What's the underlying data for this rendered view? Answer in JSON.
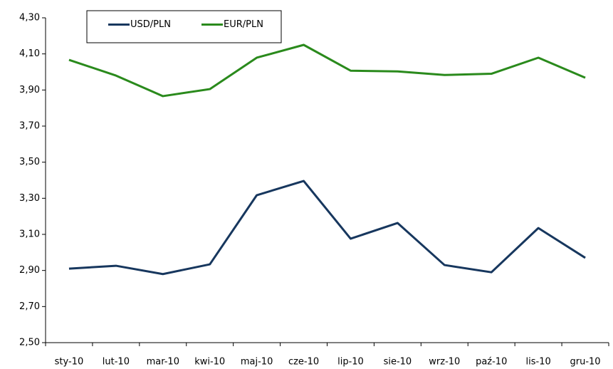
{
  "chart_data": {
    "type": "line",
    "categories": [
      "sty-10",
      "lut-10",
      "mar-10",
      "kwi-10",
      "maj-10",
      "cze-10",
      "lip-10",
      "sie-10",
      "wrz-10",
      "paź-10",
      "lis-10",
      "gru-10"
    ],
    "series": [
      {
        "name": "USD/PLN",
        "color": "#17375e",
        "values": [
          2.91,
          2.926,
          2.88,
          2.934,
          3.317,
          3.396,
          3.076,
          3.163,
          2.93,
          2.89,
          3.135,
          2.97
        ]
      },
      {
        "name": "EUR/PLN",
        "color": "#2a8a1c",
        "values": [
          4.067,
          3.98,
          3.866,
          3.905,
          4.079,
          4.15,
          4.007,
          4.003,
          3.983,
          3.99,
          4.079,
          3.968
        ]
      }
    ],
    "ylim": [
      2.5,
      4.3
    ],
    "yticks": [
      {
        "value": 2.5,
        "label": "2,50"
      },
      {
        "value": 2.7,
        "label": "2,70"
      },
      {
        "value": 2.9,
        "label": "2,90"
      },
      {
        "value": 3.1,
        "label": "3,10"
      },
      {
        "value": 3.3,
        "label": "3,30"
      },
      {
        "value": 3.5,
        "label": "3,50"
      },
      {
        "value": 3.7,
        "label": "3,70"
      },
      {
        "value": 3.9,
        "label": "3,90"
      },
      {
        "value": 4.1,
        "label": "4,10"
      },
      {
        "value": 4.3,
        "label": "4,30"
      }
    ],
    "grid": false,
    "legend": "upper-left"
  }
}
